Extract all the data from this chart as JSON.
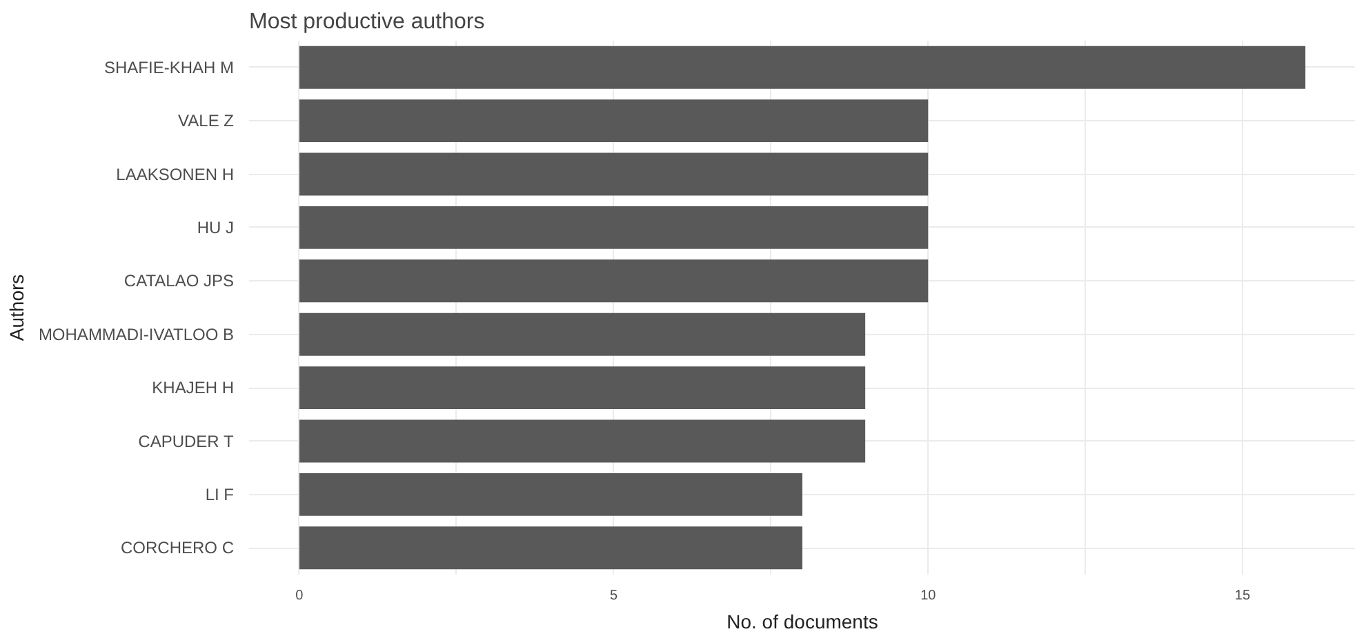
{
  "chart_data": {
    "type": "bar",
    "orientation": "horizontal",
    "title": "Most productive authors",
    "xlabel": "No. of documents",
    "ylabel": "Authors",
    "categories": [
      "SHAFIE-KHAH M",
      "VALE Z",
      "LAAKSONEN H",
      "HU J",
      "CATALAO JPS",
      "MOHAMMADI-IVATLOO B",
      "KHAJEH H",
      "CAPUDER T",
      "LI F",
      "CORCHERO C"
    ],
    "values": [
      16,
      10,
      10,
      10,
      10,
      9,
      9,
      9,
      8,
      8
    ],
    "color": "#595959",
    "xlim": [
      -0.8,
      16.8
    ],
    "xticks": [
      0,
      {
        "value": 2.5,
        "label": null
      },
      5,
      {
        "value": 7.5,
        "label": null
      },
      10,
      {
        "value": 12.5,
        "label": null
      },
      15
    ],
    "grid": true
  }
}
